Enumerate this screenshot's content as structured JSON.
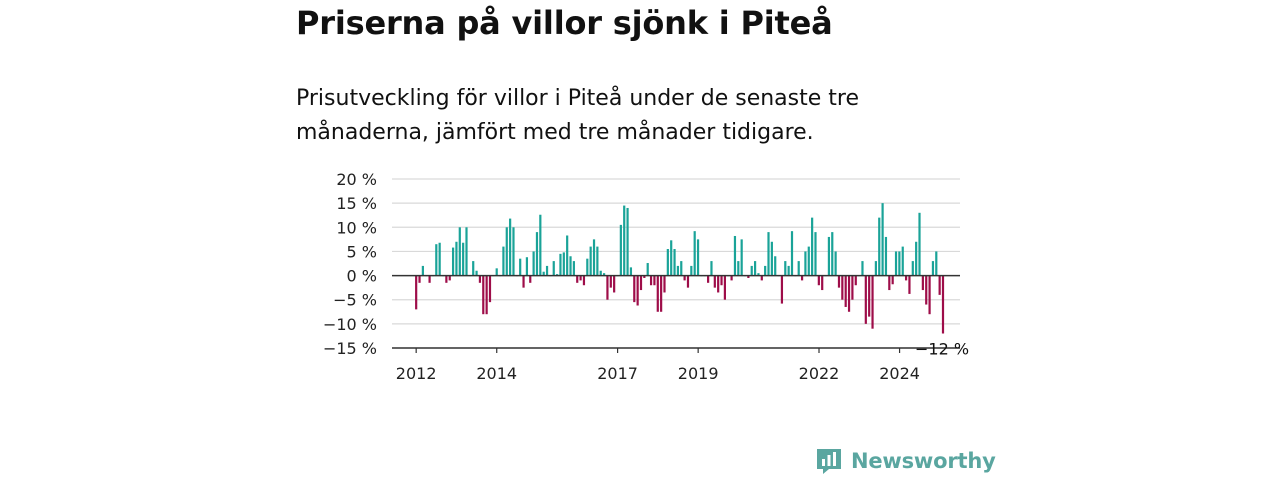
{
  "title": "Priserna på villor sjönk i Piteå",
  "subtitle": "Prisutveckling för villor i Piteå under de senaste tre månaderna, jämfört med tre månader tidigare.",
  "brand": "Newsworthy",
  "colors": {
    "positive": "#1aa398",
    "negative": "#9e0d49",
    "grid": "#d9d9d9",
    "axis": "#333333",
    "brand": "#5aa6a0"
  },
  "chart_data": {
    "type": "bar",
    "ylim": [
      -15,
      20
    ],
    "yticks": [
      20,
      15,
      10,
      5,
      0,
      -5,
      -10,
      -15
    ],
    "ytick_labels": [
      "20 %",
      "15 %",
      "10 %",
      "5 %",
      "0 %",
      "−5 %",
      "−10 %",
      "−15 %"
    ],
    "xtick_labels": [
      {
        "label": "2012",
        "x": 2012.0
      },
      {
        "label": "2014",
        "x": 2014.0
      },
      {
        "label": "2017",
        "x": 2017.0
      },
      {
        "label": "2019",
        "x": 2019.0
      },
      {
        "label": "2022",
        "x": 2022.0
      },
      {
        "label": "2024",
        "x": 2024.0
      }
    ],
    "x_range": [
      2011.4,
      2025.5
    ],
    "end_label": "−12 %",
    "grid": true,
    "x_start": 2012.0,
    "x_step": 0.0833,
    "values": [
      -7,
      -1.5,
      2,
      0,
      -1.5,
      0,
      6.5,
      6.8,
      0,
      -1.5,
      -1,
      5.8,
      7,
      10,
      6.8,
      10,
      0,
      3,
      1,
      -1.5,
      -8,
      -8,
      -5.5,
      0,
      1.5,
      0,
      6,
      10,
      11.8,
      10,
      0,
      3.5,
      -2.5,
      3.8,
      -1.5,
      5,
      9,
      12.6,
      0.8,
      2,
      0,
      3,
      0.3,
      4.5,
      4.8,
      8.3,
      4,
      3,
      -1.5,
      -1,
      -2,
      3.5,
      6,
      7.5,
      6,
      1,
      0.5,
      -5,
      -2.5,
      -3.5,
      0,
      10.5,
      14.5,
      14,
      1.7,
      -5.5,
      -6.2,
      -3,
      -0.5,
      2.6,
      -2,
      -2,
      -7.5,
      -7.5,
      -3.5,
      5.5,
      7.3,
      5.5,
      2,
      3,
      -1,
      -2.5,
      2,
      9.2,
      7.5,
      0,
      0,
      -1.5,
      3,
      -2.5,
      -3.5,
      -2,
      -5,
      0,
      -1,
      8.2,
      3,
      7.5,
      0,
      -0.5,
      2,
      3,
      0.5,
      -1,
      2,
      9,
      7,
      4,
      0,
      -5.8,
      3,
      2,
      9.2,
      0,
      3,
      -1,
      5,
      6,
      12,
      9,
      -2,
      -3,
      0,
      8,
      9,
      5,
      -2.5,
      -5,
      -6.5,
      -7.5,
      -5,
      -2,
      0,
      3,
      -10,
      -8.5,
      -11,
      3,
      12,
      15,
      8,
      -3,
      -1.8,
      5,
      5,
      6,
      -1,
      -3.8,
      3,
      7,
      13,
      -3,
      -6,
      -8,
      3,
      5,
      -4,
      -12
    ]
  }
}
